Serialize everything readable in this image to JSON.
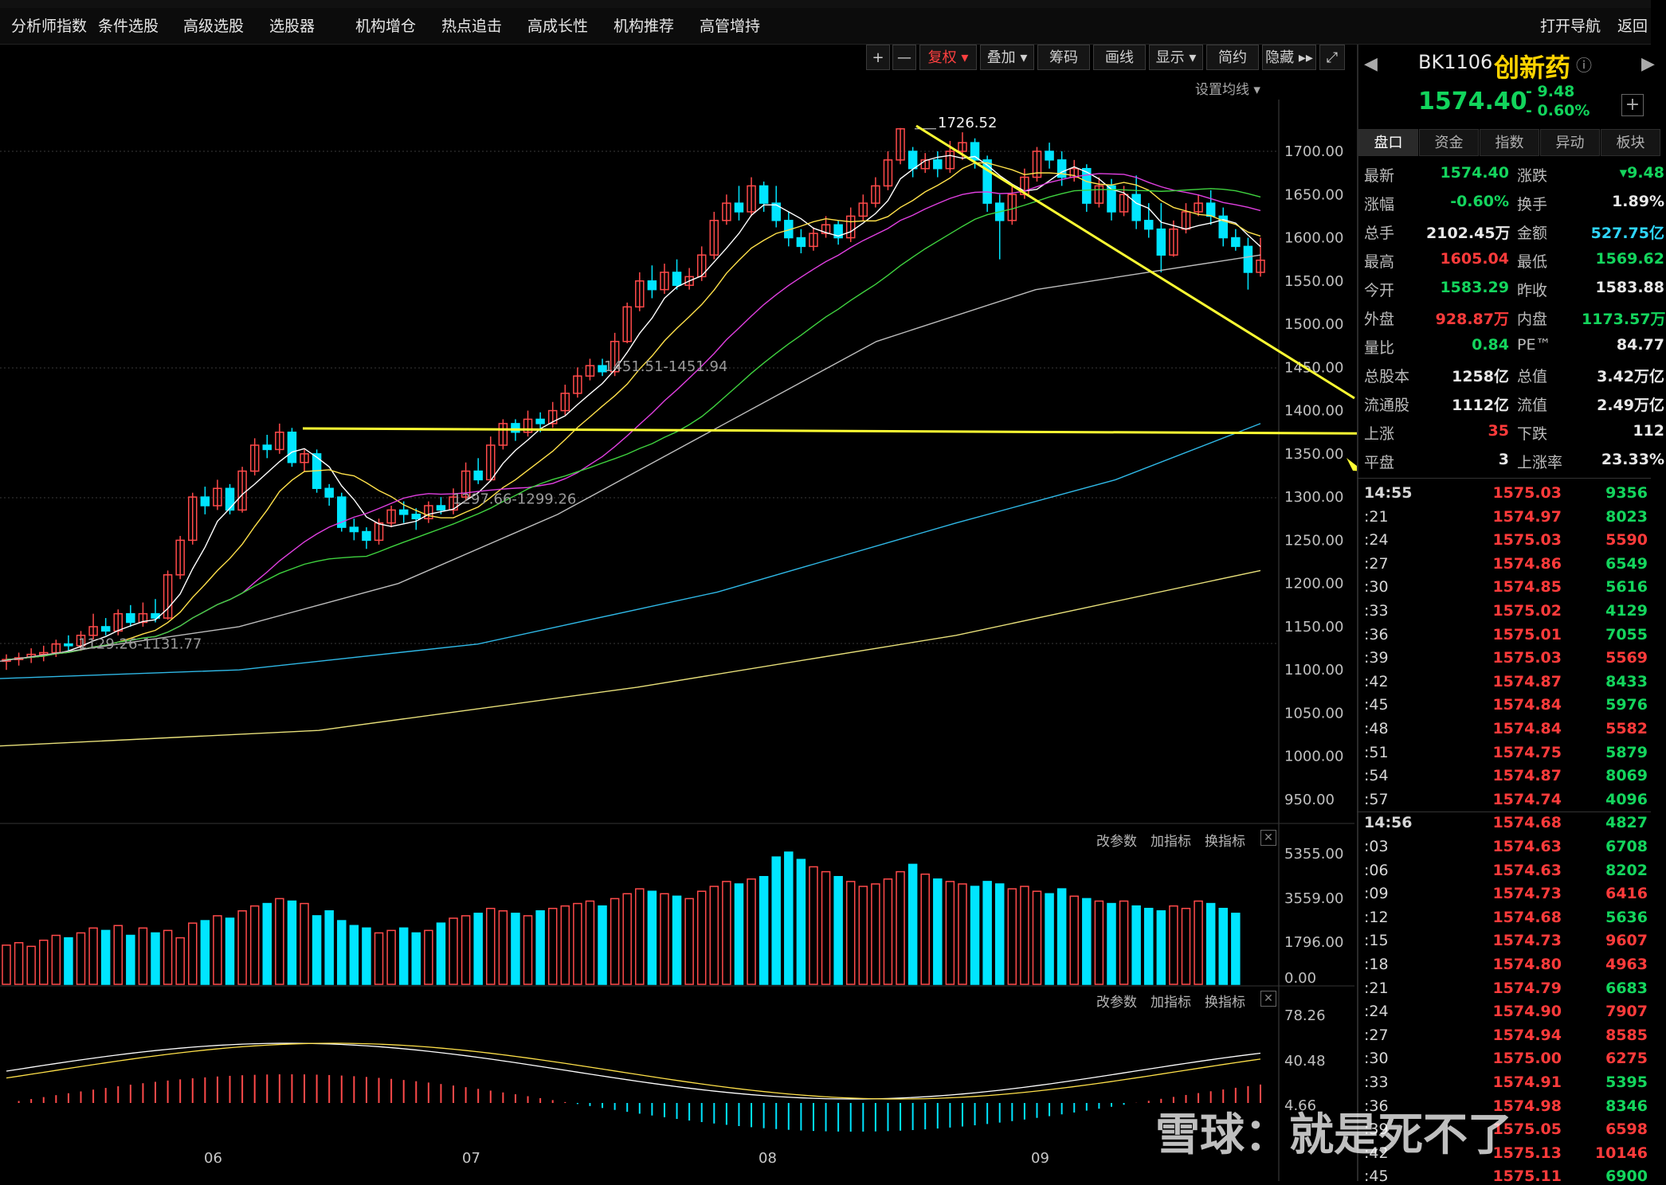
{
  "menu": [
    "分析师指数",
    "条件选股",
    "高级选股",
    "选股器",
    "机构增仓",
    "热点追击",
    "高成长性",
    "机构推荐",
    "高管增持"
  ],
  "nav": {
    "open_nav": "打开导航",
    "back": "返回"
  },
  "toolbar": {
    "plus": "+",
    "minus": "—",
    "fuquan": "复权",
    "overlay": "叠加",
    "chips": "筹码",
    "draw": "画线",
    "display": "显示",
    "brief": "简约",
    "hide": "隐藏",
    "set_ma": "设置均线"
  },
  "chart_data": {
    "type": "candlestick",
    "price_axis": [
      "1700.00",
      "1650.00",
      "1600.00",
      "1550.00",
      "1500.00",
      "1450.00",
      "1400.00",
      "1350.00",
      "1300.00",
      "1250.00",
      "1200.00",
      "1150.00",
      "1100.00",
      "1050.00",
      "1000.00",
      "950.00"
    ],
    "ylim": [
      930,
      1760
    ],
    "month_labels": [
      "06",
      "07",
      "08",
      "09"
    ],
    "annotations": {
      "high": "1726.52",
      "a1": "1451.51-1451.94",
      "a2": "1297.66-1299.26",
      "a3": "1129.26-1131.77"
    },
    "candles": [
      [
        1110,
        1112,
        1100,
        1118
      ],
      [
        1112,
        1114,
        1105,
        1120
      ],
      [
        1115,
        1118,
        1108,
        1125
      ],
      [
        1118,
        1120,
        1110,
        1128
      ],
      [
        1120,
        1130,
        1115,
        1135
      ],
      [
        1130,
        1128,
        1122,
        1140
      ],
      [
        1128,
        1140,
        1122,
        1145
      ],
      [
        1140,
        1150,
        1135,
        1165
      ],
      [
        1150,
        1145,
        1140,
        1160
      ],
      [
        1145,
        1165,
        1140,
        1170
      ],
      [
        1165,
        1155,
        1150,
        1175
      ],
      [
        1155,
        1165,
        1150,
        1178
      ],
      [
        1165,
        1160,
        1155,
        1182
      ],
      [
        1160,
        1210,
        1158,
        1215
      ],
      [
        1210,
        1250,
        1205,
        1255
      ],
      [
        1250,
        1300,
        1245,
        1305
      ],
      [
        1300,
        1290,
        1280,
        1312
      ],
      [
        1290,
        1310,
        1285,
        1320
      ],
      [
        1310,
        1285,
        1280,
        1315
      ],
      [
        1285,
        1330,
        1282,
        1335
      ],
      [
        1330,
        1360,
        1325,
        1368
      ],
      [
        1360,
        1355,
        1345,
        1372
      ],
      [
        1355,
        1375,
        1350,
        1385
      ],
      [
        1375,
        1340,
        1335,
        1380
      ],
      [
        1340,
        1350,
        1330,
        1355
      ],
      [
        1350,
        1310,
        1305,
        1355
      ],
      [
        1310,
        1300,
        1290,
        1315
      ],
      [
        1300,
        1265,
        1260,
        1305
      ],
      [
        1265,
        1260,
        1250,
        1275
      ],
      [
        1260,
        1250,
        1240,
        1265
      ],
      [
        1250,
        1270,
        1245,
        1275
      ],
      [
        1270,
        1285,
        1265,
        1290
      ],
      [
        1285,
        1280,
        1270,
        1295
      ],
      [
        1280,
        1275,
        1262,
        1287
      ],
      [
        1275,
        1290,
        1270,
        1295
      ],
      [
        1290,
        1285,
        1280,
        1300
      ],
      [
        1285,
        1300,
        1280,
        1310
      ],
      [
        1300,
        1330,
        1295,
        1340
      ],
      [
        1330,
        1320,
        1315,
        1345
      ],
      [
        1320,
        1360,
        1318,
        1370
      ],
      [
        1360,
        1385,
        1355,
        1390
      ],
      [
        1385,
        1375,
        1365,
        1390
      ],
      [
        1375,
        1390,
        1370,
        1400
      ],
      [
        1390,
        1385,
        1375,
        1398
      ],
      [
        1385,
        1400,
        1380,
        1410
      ],
      [
        1400,
        1420,
        1395,
        1430
      ],
      [
        1420,
        1440,
        1415,
        1450
      ],
      [
        1440,
        1452,
        1435,
        1460
      ],
      [
        1452,
        1445,
        1440,
        1460
      ],
      [
        1445,
        1480,
        1440,
        1490
      ],
      [
        1480,
        1520,
        1478,
        1525
      ],
      [
        1520,
        1550,
        1515,
        1560
      ],
      [
        1550,
        1540,
        1530,
        1568
      ],
      [
        1540,
        1560,
        1535,
        1570
      ],
      [
        1560,
        1545,
        1540,
        1575
      ],
      [
        1545,
        1555,
        1540,
        1565
      ],
      [
        1555,
        1580,
        1550,
        1590
      ],
      [
        1580,
        1620,
        1575,
        1630
      ],
      [
        1620,
        1640,
        1615,
        1650
      ],
      [
        1640,
        1630,
        1620,
        1660
      ],
      [
        1630,
        1660,
        1625,
        1670
      ],
      [
        1660,
        1640,
        1630,
        1665
      ],
      [
        1640,
        1620,
        1612,
        1660
      ],
      [
        1620,
        1600,
        1590,
        1630
      ],
      [
        1600,
        1590,
        1582,
        1610
      ],
      [
        1590,
        1605,
        1585,
        1612
      ],
      [
        1605,
        1615,
        1600,
        1625
      ],
      [
        1615,
        1600,
        1592,
        1620
      ],
      [
        1600,
        1625,
        1595,
        1635
      ],
      [
        1625,
        1640,
        1620,
        1650
      ],
      [
        1640,
        1660,
        1635,
        1670
      ],
      [
        1660,
        1690,
        1655,
        1700
      ],
      [
        1690,
        1726,
        1685,
        1727
      ],
      [
        1700,
        1680,
        1670,
        1705
      ],
      [
        1680,
        1690,
        1675,
        1698
      ],
      [
        1690,
        1680,
        1670,
        1700
      ],
      [
        1680,
        1700,
        1675,
        1712
      ],
      [
        1700,
        1710,
        1690,
        1722
      ],
      [
        1710,
        1690,
        1680,
        1715
      ],
      [
        1690,
        1640,
        1630,
        1695
      ],
      [
        1640,
        1620,
        1575,
        1650
      ],
      [
        1620,
        1650,
        1615,
        1660
      ],
      [
        1650,
        1670,
        1645,
        1680
      ],
      [
        1670,
        1700,
        1665,
        1705
      ],
      [
        1700,
        1690,
        1680,
        1710
      ],
      [
        1690,
        1670,
        1660,
        1700
      ],
      [
        1670,
        1680,
        1665,
        1690
      ],
      [
        1680,
        1640,
        1630,
        1685
      ],
      [
        1640,
        1660,
        1635,
        1670
      ],
      [
        1660,
        1630,
        1620,
        1668
      ],
      [
        1630,
        1650,
        1625,
        1660
      ],
      [
        1650,
        1620,
        1610,
        1672
      ],
      [
        1620,
        1610,
        1600,
        1640
      ],
      [
        1610,
        1580,
        1560,
        1640
      ],
      [
        1580,
        1610,
        1578,
        1620
      ],
      [
        1610,
        1630,
        1605,
        1640
      ],
      [
        1630,
        1640,
        1625,
        1650
      ],
      [
        1640,
        1625,
        1615,
        1655
      ],
      [
        1625,
        1600,
        1590,
        1635
      ],
      [
        1600,
        1590,
        1585,
        1610
      ],
      [
        1590,
        1560,
        1540,
        1600
      ],
      [
        1560,
        1574,
        1555,
        1600
      ]
    ],
    "vol_axis": [
      "5355.00",
      "3559.00",
      "1796.00",
      "0.00"
    ],
    "volumes": [
      1600,
      1700,
      1550,
      1800,
      2000,
      1900,
      2100,
      2300,
      2200,
      2400,
      2000,
      2300,
      2100,
      2200,
      1900,
      2500,
      2600,
      2800,
      2700,
      3000,
      3200,
      3300,
      3500,
      3400,
      3300,
      2800,
      3000,
      2600,
      2400,
      2300,
      2100,
      2200,
      2300,
      2100,
      2200,
      2500,
      2700,
      2800,
      2900,
      3100,
      3000,
      2900,
      2800,
      3000,
      3100,
      3200,
      3300,
      3400,
      3200,
      3500,
      3700,
      3900,
      3800,
      3700,
      3600,
      3500,
      3800,
      4000,
      4200,
      4100,
      4300,
      4400,
      5200,
      5400,
      5100,
      4800,
      4600,
      4400,
      4200,
      4000,
      4100,
      4300,
      4600,
      4900,
      4500,
      4300,
      4200,
      4100,
      4000,
      4200,
      4100,
      3900,
      4000,
      3800,
      3700,
      3900,
      3600,
      3500,
      3400,
      3300,
      3400,
      3200,
      3100,
      3000,
      3200,
      3100,
      3400,
      3300,
      3100,
      2900
    ],
    "osc_axis": [
      "78.26",
      "40.48",
      "4.66"
    ]
  },
  "panel": {
    "code": "BK1106",
    "name": "创新药",
    "price": "1574.40",
    "chg": "- 9.48",
    "chg_pct": "- 0.60%",
    "tabs": [
      "盘口",
      "资金",
      "指数",
      "异动",
      "板块"
    ],
    "rows": [
      [
        "最新",
        "1574.40",
        "涨跌",
        "▾9.48"
      ],
      [
        "涨幅",
        "-0.60%",
        "换手",
        "1.89%"
      ],
      [
        "总手",
        "2102.45万",
        "金额",
        "527.75亿"
      ],
      [
        "最高",
        "1605.04",
        "最低",
        "1569.62"
      ],
      [
        "今开",
        "1583.29",
        "昨收",
        "1583.88"
      ],
      [
        "外盘",
        "928.87万",
        "内盘",
        "1173.57万"
      ],
      [
        "量比",
        "0.84",
        "PE™",
        "84.77"
      ],
      [
        "总股本",
        "1258亿",
        "总值",
        "3.42万亿"
      ],
      [
        "流通股",
        "1112亿",
        "流值",
        "2.49万亿"
      ],
      [
        "上涨",
        "35",
        "下跌",
        "112"
      ],
      [
        "平盘",
        "3",
        "上涨率",
        "23.33%"
      ]
    ],
    "ticks": [
      [
        "14:55",
        "1575.03",
        "9356"
      ],
      [
        ":21",
        "1574.97",
        "8023"
      ],
      [
        ":24",
        "1575.03",
        "5590"
      ],
      [
        ":27",
        "1574.86",
        "6549"
      ],
      [
        ":30",
        "1574.85",
        "5616"
      ],
      [
        ":33",
        "1575.02",
        "4129"
      ],
      [
        ":36",
        "1575.01",
        "7055"
      ],
      [
        ":39",
        "1575.03",
        "5569"
      ],
      [
        ":42",
        "1574.87",
        "8433"
      ],
      [
        ":45",
        "1574.84",
        "5976"
      ],
      [
        ":48",
        "1574.84",
        "5582"
      ],
      [
        ":51",
        "1574.75",
        "5879"
      ],
      [
        ":54",
        "1574.87",
        "8069"
      ],
      [
        ":57",
        "1574.74",
        "4096"
      ],
      [
        "14:56",
        "1574.68",
        "4827"
      ],
      [
        ":03",
        "1574.63",
        "6708"
      ],
      [
        ":06",
        "1574.63",
        "8202"
      ],
      [
        ":09",
        "1574.73",
        "6416"
      ],
      [
        ":12",
        "1574.68",
        "5636"
      ],
      [
        ":15",
        "1574.73",
        "9607"
      ],
      [
        ":18",
        "1574.80",
        "4963"
      ],
      [
        ":21",
        "1574.79",
        "6683"
      ],
      [
        ":24",
        "1574.90",
        "7907"
      ],
      [
        ":27",
        "1574.94",
        "8585"
      ],
      [
        ":30",
        "1575.00",
        "6275"
      ],
      [
        ":33",
        "1574.91",
        "5395"
      ],
      [
        ":36",
        "1574.98",
        "8346"
      ],
      [
        ":39",
        "1575.05",
        "6598"
      ],
      [
        ":42",
        "1575.13",
        "10146"
      ],
      [
        ":45",
        "1575.11",
        "6900"
      ]
    ],
    "tick_vol_colors": [
      "green",
      "green",
      "red",
      "green",
      "green",
      "green",
      "green",
      "red",
      "green",
      "green",
      "red",
      "green",
      "green",
      "green",
      "green",
      "green",
      "green",
      "red",
      "green",
      "red",
      "red",
      "green",
      "red",
      "red",
      "red",
      "green",
      "green",
      "red",
      "red",
      "green"
    ]
  },
  "sub_panel": {
    "params": "改参数",
    "add": "加指标",
    "swap": "换指标"
  },
  "watermark": "雪球：就是死不了"
}
